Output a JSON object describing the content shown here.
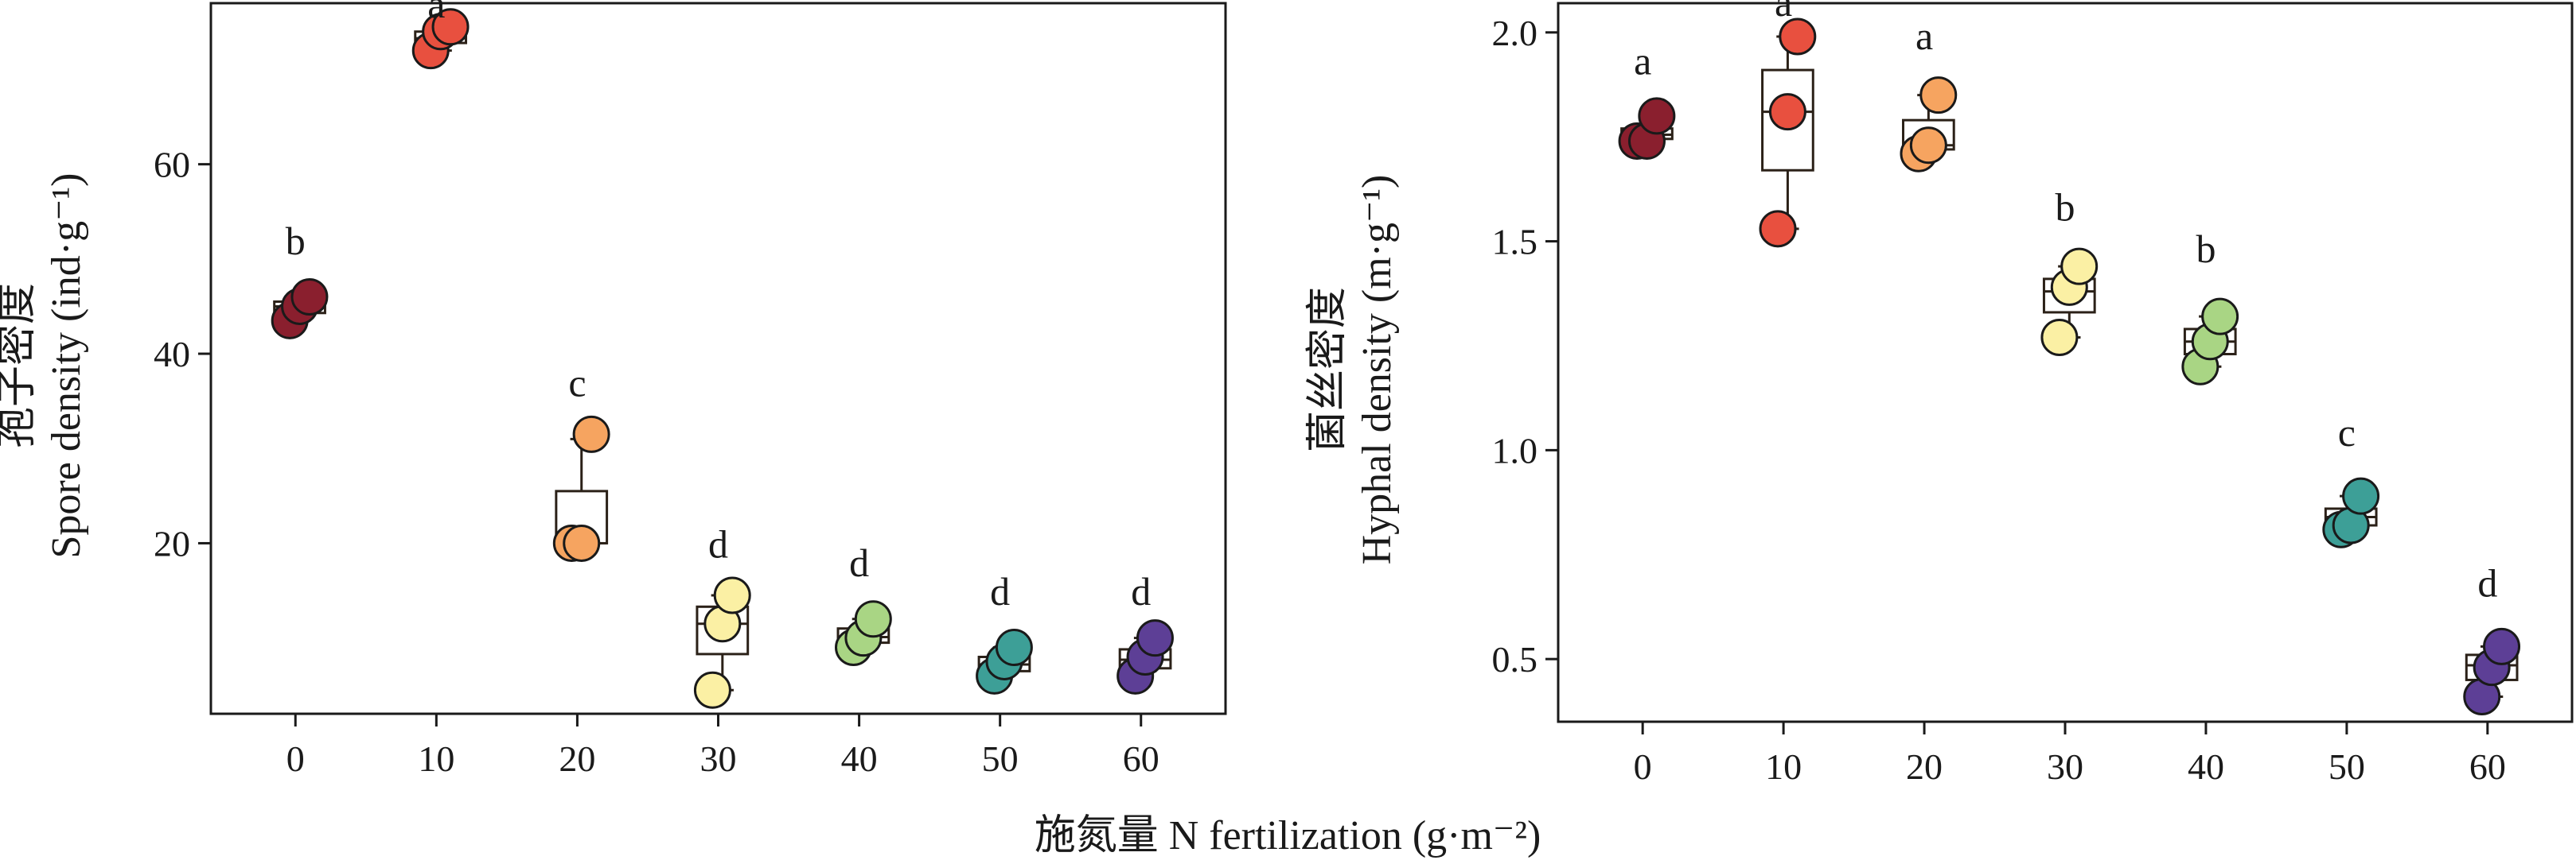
{
  "figure": {
    "xlabel": "施氮量 N fertilization (g·m⁻²)"
  },
  "colors": [
    "#8a1f2e",
    "#e8503f",
    "#f6a460",
    "#fbf0a4",
    "#a9d584",
    "#3d9f97",
    "#5d3f96"
  ],
  "chart_data": [
    {
      "type": "box",
      "name": "spore",
      "ylabel_cn": "孢子密度",
      "ylabel_en": "Spore density (ind·g⁻¹)",
      "categories": [
        "0",
        "10",
        "20",
        "30",
        "40",
        "50",
        "60"
      ],
      "yticks": [
        20,
        40,
        60
      ],
      "ylim": [
        2,
        77
      ],
      "points": [
        [
          43.5,
          45,
          46
        ],
        [
          72,
          74,
          74.5
        ],
        [
          20,
          20,
          31.5
        ],
        [
          4.5,
          11.5,
          14.5
        ],
        [
          9,
          10,
          12
        ],
        [
          6,
          7.5,
          9
        ],
        [
          6,
          8,
          10
        ]
      ],
      "boxes": [
        {
          "low": 44,
          "q1": 44.3,
          "median": 45,
          "q3": 45.5,
          "high": 46
        },
        {
          "low": 72,
          "q1": 72.8,
          "median": 73.3,
          "q3": 74,
          "high": 74.5
        },
        {
          "low": 20,
          "q1": 20,
          "median": 20,
          "q3": 25.5,
          "high": 31
        },
        {
          "low": 4.5,
          "q1": 8.3,
          "median": 11.5,
          "q3": 13.3,
          "high": 14.5
        },
        {
          "low": 9,
          "q1": 9.5,
          "median": 10.1,
          "q3": 11,
          "high": 12
        },
        {
          "low": 6.2,
          "q1": 6.5,
          "median": 7.2,
          "q3": 8,
          "high": 9
        },
        {
          "low": 6.5,
          "q1": 6.8,
          "median": 7.7,
          "q3": 8.8,
          "high": 10
        }
      ],
      "letters": [
        "b",
        "a",
        "c",
        "d",
        "d",
        "d",
        "d"
      ],
      "letter_y": [
        50.5,
        75.5,
        35.5,
        18.5,
        16.5,
        13.5,
        13.5
      ]
    },
    {
      "type": "box",
      "name": "hyphal",
      "ylabel_cn": "菌丝密度",
      "ylabel_en": "Hyphal density (m·g⁻¹)",
      "categories": [
        "0",
        "10",
        "20",
        "30",
        "40",
        "50",
        "60"
      ],
      "yticks": [
        0.5,
        1.0,
        1.5,
        2.0
      ],
      "ytick_labels": [
        "0.5",
        "1.0",
        "1.5",
        "2.0"
      ],
      "ylim": [
        0.35,
        2.07
      ],
      "points": [
        [
          1.74,
          1.74,
          1.8
        ],
        [
          1.53,
          1.81,
          1.99
        ],
        [
          1.71,
          1.73,
          1.85
        ],
        [
          1.27,
          1.39,
          1.44
        ],
        [
          1.2,
          1.26,
          1.32
        ],
        [
          0.81,
          0.82,
          0.89
        ],
        [
          0.41,
          0.48,
          0.53
        ]
      ],
      "boxes": [
        {
          "low": 1.74,
          "q1": 1.745,
          "median": 1.755,
          "q3": 1.77,
          "high": 1.78
        },
        {
          "low": 1.53,
          "q1": 1.67,
          "median": 1.81,
          "q3": 1.91,
          "high": 1.99
        },
        {
          "low": 1.71,
          "q1": 1.72,
          "median": 1.73,
          "q3": 1.79,
          "high": 1.85
        },
        {
          "low": 1.27,
          "q1": 1.33,
          "median": 1.38,
          "q3": 1.41,
          "high": 1.44
        },
        {
          "low": 1.2,
          "q1": 1.23,
          "median": 1.26,
          "q3": 1.29,
          "high": 1.32
        },
        {
          "low": 0.81,
          "q1": 0.82,
          "median": 0.84,
          "q3": 0.86,
          "high": 0.89
        },
        {
          "low": 0.41,
          "q1": 0.45,
          "median": 0.485,
          "q3": 0.51,
          "high": 0.53
        }
      ],
      "letters": [
        "a",
        "a",
        "a",
        "b",
        "b",
        "c",
        "d"
      ],
      "letter_y": [
        1.9,
        2.04,
        1.96,
        1.55,
        1.45,
        1.01,
        0.65
      ]
    }
  ]
}
